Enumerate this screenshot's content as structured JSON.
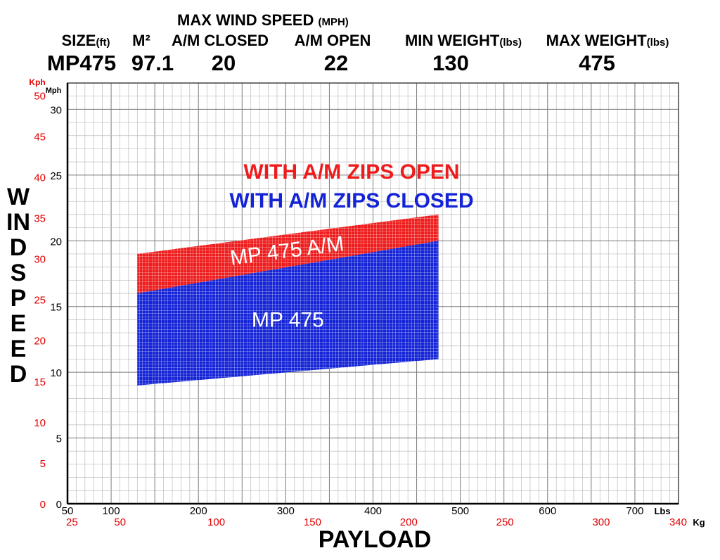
{
  "header": {
    "max_wind_speed_label": "MAX WIND SPEED",
    "max_wind_speed_unit": "(MPH)",
    "size_label": "SIZE",
    "size_unit": "(ft)",
    "m2_label": "M²",
    "am_closed_label": "A/M CLOSED",
    "am_open_label": "A/M OPEN",
    "min_weight_label": "MIN WEIGHT",
    "min_weight_unit": "(lbs)",
    "max_weight_label": "MAX WEIGHT",
    "max_weight_unit": "(lbs)",
    "size_value": "MP475",
    "m2_value": "97.1",
    "am_closed_value": "20",
    "am_open_value": "22",
    "min_weight_value": "130",
    "max_weight_value": "475"
  },
  "colors": {
    "open": "#ee1c1c",
    "closed": "#1423d6",
    "kph_text": "#e00000",
    "grid": "#9a9a9a"
  },
  "chart_data": {
    "type": "area",
    "xlabel": "PAYLOAD",
    "ylabel": "WIND SPEED",
    "x_unit_label": "Lbs",
    "x2_unit_label": "Kg",
    "y_unit_label": "Mph",
    "y2_unit_label": "Kph",
    "xlim": [
      50,
      750
    ],
    "ylim": [
      0,
      32
    ],
    "x_ticks": [
      50,
      100,
      200,
      300,
      400,
      500,
      600,
      700
    ],
    "y_ticks": [
      0,
      5,
      10,
      15,
      20,
      25,
      30
    ],
    "x2_ticks": [
      25,
      50,
      100,
      150,
      200,
      250,
      300,
      340
    ],
    "y2_ticks": [
      0,
      5,
      10,
      15,
      20,
      25,
      30,
      35,
      40,
      45,
      50
    ],
    "grid": true,
    "legend": [
      "WITH A/M ZIPS OPEN",
      "WITH A/M ZIPS CLOSED"
    ],
    "series": [
      {
        "name": "MP 475 A/M",
        "x": [
          130,
          475
        ],
        "upper": [
          19,
          22
        ],
        "lower": [
          16,
          20
        ]
      },
      {
        "name": "MP 475",
        "x": [
          130,
          475
        ],
        "upper": [
          16,
          20
        ],
        "lower": [
          9,
          11
        ]
      }
    ]
  }
}
